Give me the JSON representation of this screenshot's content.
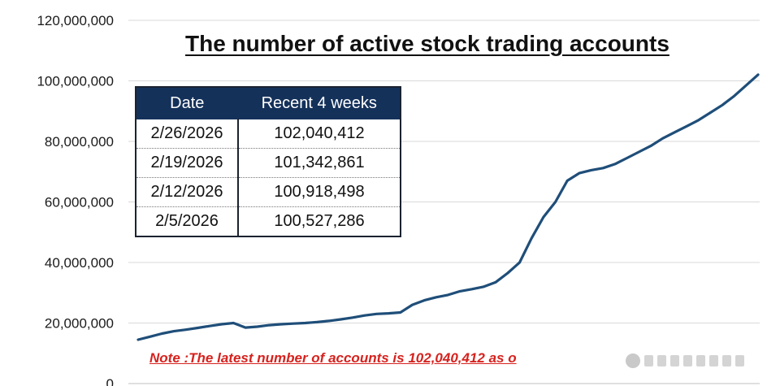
{
  "chart_data": {
    "type": "line",
    "title": "The number of active stock trading accounts",
    "ylim": [
      0,
      120000000
    ],
    "y_ticks": [
      "120,000,000",
      "100,000,000",
      "80,000,000",
      "60,000,000",
      "40,000,000",
      "20,000,000",
      "0"
    ],
    "grid": true,
    "line_color": "#1f4e79",
    "series": [
      {
        "values": [
          14500000,
          15500000,
          16500000,
          17300000,
          17800000,
          18400000,
          19000000,
          19600000,
          20000000,
          18500000,
          18800000,
          19300000,
          19600000,
          19800000,
          20000000,
          20300000,
          20700000,
          21200000,
          21800000,
          22500000,
          23000000,
          23200000,
          23500000,
          26000000,
          27500000,
          28500000,
          29300000,
          30500000,
          31200000,
          32000000,
          33500000,
          36500000,
          40000000,
          48000000,
          55000000,
          60000000,
          67000000,
          69500000,
          70500000,
          71200000,
          72500000,
          74500000,
          76500000,
          78500000,
          81000000,
          83000000,
          85000000,
          87000000,
          89500000,
          92000000,
          95000000,
          98500000,
          102040412
        ]
      }
    ]
  },
  "table": {
    "headers": [
      "Date",
      "Recent 4 weeks"
    ],
    "rows": [
      [
        "2/26/2026",
        "102,040,412"
      ],
      [
        "2/19/2026",
        "101,342,861"
      ],
      [
        "2/12/2026",
        "100,918,498"
      ],
      [
        "2/5/2026",
        "100,527,286"
      ]
    ]
  },
  "note": "Note :The latest number of accounts is 102,040,412 as o"
}
